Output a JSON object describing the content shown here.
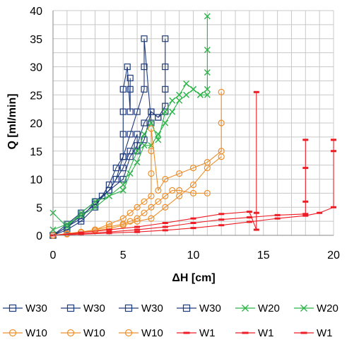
{
  "chart_data": {
    "type": "scatter",
    "xlabel": "ΔH [cm]",
    "ylabel": "Q [ml/min]",
    "xlim": [
      0,
      20
    ],
    "ylim": [
      0,
      40
    ],
    "x_ticks": [
      "0",
      "5",
      "10",
      "15",
      "20"
    ],
    "y_ticks": [
      "0",
      "5",
      "10",
      "15",
      "20",
      "25",
      "30",
      "35",
      "40"
    ],
    "grid": true,
    "legend_position": "bottom",
    "colors": {
      "W30": "#1f3a7a",
      "W20": "#2db34a",
      "W10": "#ee8f2a",
      "W1": "#ee1c24"
    },
    "series": [
      {
        "name": "W30",
        "group": "W30",
        "marker": "square",
        "x": [
          0,
          1,
          2,
          3,
          3.5,
          4,
          4.5,
          5,
          5,
          5,
          5,
          5.3,
          5.5,
          5.5,
          5.5
        ],
        "y": [
          0,
          1,
          2.5,
          5,
          7,
          9,
          12,
          14,
          18,
          22,
          26,
          30,
          22,
          26,
          28
        ]
      },
      {
        "name": "W30",
        "group": "W30",
        "marker": "square",
        "x": [
          0,
          1,
          2,
          3,
          4,
          4.5,
          5,
          5.5,
          6,
          6.5,
          6.5,
          6.5,
          7
        ],
        "y": [
          0,
          1.5,
          3,
          6,
          8,
          10,
          14,
          18,
          22,
          26,
          30,
          35,
          20
        ]
      },
      {
        "name": "W30",
        "group": "W30",
        "marker": "square",
        "x": [
          0,
          1,
          2,
          3,
          4,
          5,
          5.5,
          6,
          6,
          6.5,
          7,
          7.5,
          8,
          8,
          8,
          8
        ],
        "y": [
          0,
          2,
          4,
          6,
          8,
          12,
          15,
          18,
          15,
          17,
          22,
          21,
          23,
          26,
          30,
          35
        ]
      },
      {
        "name": "W30",
        "group": "W30",
        "marker": "square",
        "x": [
          0,
          1,
          2,
          3,
          4,
          5,
          5.5,
          6,
          6.5,
          7,
          7.5,
          8
        ],
        "y": [
          0,
          1.5,
          3.5,
          5.5,
          8,
          10,
          14,
          16,
          20,
          22,
          21,
          22
        ]
      },
      {
        "name": "W20",
        "group": "W20",
        "marker": "x",
        "x": [
          0,
          1,
          2,
          3,
          4,
          5,
          6,
          6.5,
          7,
          7.5,
          8,
          8.5,
          9,
          9.5,
          10,
          10.5,
          11,
          11,
          11,
          11
        ],
        "y": [
          4,
          1.5,
          4,
          6,
          7,
          9,
          15,
          18,
          20,
          17,
          22,
          24,
          25,
          27,
          26,
          25,
          26,
          29,
          33,
          39
        ]
      },
      {
        "name": "W20",
        "group": "W20",
        "marker": "x",
        "x": [
          0,
          1,
          2,
          3,
          4,
          5,
          5.5,
          6,
          6.5,
          7,
          7.5,
          8,
          8.5,
          9,
          9.5,
          10,
          10.5,
          11
        ],
        "y": [
          1,
          2,
          3.5,
          5,
          7,
          8,
          11,
          13,
          16,
          16,
          18,
          20,
          22,
          24,
          25,
          26,
          25,
          25
        ]
      },
      {
        "name": "W10",
        "group": "W10",
        "marker": "circle",
        "x": [
          0,
          1,
          2,
          3,
          4,
          5,
          5.5,
          6,
          6.5,
          7,
          7,
          7,
          7,
          7.5,
          8,
          9,
          10,
          11,
          12,
          12,
          12
        ],
        "y": [
          0,
          0.3,
          0.6,
          1,
          2,
          3,
          4,
          5,
          6,
          7,
          11,
          15,
          19,
          8,
          10,
          11,
          12,
          13,
          15,
          20,
          25.5
        ]
      },
      {
        "name": "W10",
        "group": "W10",
        "marker": "circle",
        "x": [
          0,
          1,
          2,
          3,
          4,
          5,
          5.5,
          6,
          6.5,
          7,
          7.5,
          8,
          8.5,
          9,
          10,
          11
        ],
        "y": [
          0,
          0.3,
          0.5,
          1,
          1.5,
          2,
          2.5,
          3,
          4,
          5,
          6,
          7,
          8,
          8,
          7.5,
          7.5
        ]
      },
      {
        "name": "W10",
        "group": "W10",
        "marker": "circle",
        "x": [
          0,
          1,
          2,
          3,
          4,
          5,
          6,
          7,
          8,
          9,
          10,
          11,
          12
        ],
        "y": [
          0,
          0.2,
          0.5,
          0.8,
          1.2,
          1.8,
          2.5,
          3,
          5,
          7,
          9,
          12,
          14
        ]
      },
      {
        "name": "W1",
        "group": "W1",
        "marker": "dash",
        "x": [
          0,
          2,
          4,
          6,
          8,
          10,
          12,
          14,
          14.5,
          14.5,
          14.5
        ],
        "y": [
          0,
          0.5,
          1,
          1.5,
          2.2,
          3,
          3.8,
          4.2,
          1,
          4,
          25.5
        ]
      },
      {
        "name": "W1",
        "group": "W1",
        "marker": "dash",
        "x": [
          0,
          2,
          4,
          6,
          8,
          10,
          12,
          14,
          16,
          18,
          18,
          18,
          18
        ],
        "y": [
          0,
          0.3,
          0.6,
          1,
          1.5,
          2.2,
          2.8,
          3.2,
          3.6,
          3.8,
          6,
          12,
          17
        ]
      },
      {
        "name": "W1",
        "group": "W1",
        "marker": "dash",
        "x": [
          0,
          2,
          4,
          6,
          8,
          10,
          12,
          14,
          16,
          18,
          19,
          20,
          20,
          20
        ],
        "y": [
          0,
          0.2,
          0.4,
          0.6,
          0.9,
          1.3,
          1.8,
          2.4,
          3,
          3.5,
          4,
          5,
          15,
          17
        ]
      }
    ]
  }
}
